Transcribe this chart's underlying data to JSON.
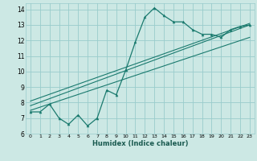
{
  "title": "",
  "xlabel": "Humidex (Indice chaleur)",
  "ylabel": "",
  "bg_color": "#cce8e4",
  "line_color": "#1a7a6e",
  "grid_color": "#99cccc",
  "xlim": [
    -0.5,
    23.5
  ],
  "ylim": [
    6,
    14.4
  ],
  "yticks": [
    6,
    7,
    8,
    9,
    10,
    11,
    12,
    13,
    14
  ],
  "xticks": [
    0,
    1,
    2,
    3,
    4,
    5,
    6,
    7,
    8,
    9,
    10,
    11,
    12,
    13,
    14,
    15,
    16,
    17,
    18,
    19,
    20,
    21,
    22,
    23
  ],
  "series1": {
    "x": [
      0,
      1,
      2,
      3,
      4,
      5,
      6,
      7,
      8,
      9,
      10,
      11,
      12,
      13,
      14,
      15,
      16,
      17,
      18,
      19,
      20,
      21,
      22,
      23
    ],
    "y": [
      7.4,
      7.4,
      7.9,
      7.0,
      6.6,
      7.2,
      6.5,
      7.0,
      8.8,
      8.5,
      10.1,
      11.9,
      13.5,
      14.1,
      13.6,
      13.2,
      13.2,
      12.7,
      12.4,
      12.4,
      12.2,
      12.7,
      12.9,
      13.0
    ]
  },
  "series2": {
    "x": [
      0,
      23
    ],
    "y": [
      7.5,
      12.2
    ]
  },
  "series3": {
    "x": [
      0,
      23
    ],
    "y": [
      7.8,
      13.0
    ]
  },
  "series4": {
    "x": [
      0,
      23
    ],
    "y": [
      8.1,
      13.1
    ]
  }
}
